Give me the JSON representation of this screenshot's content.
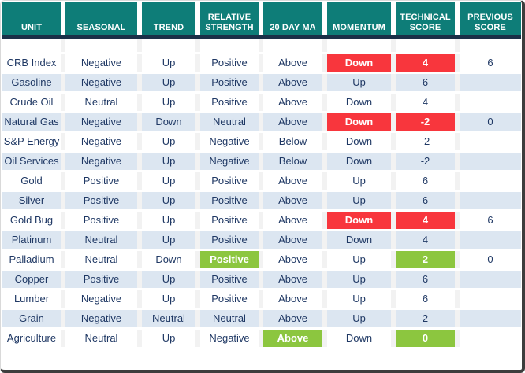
{
  "colors": {
    "header": "#0e7d78",
    "divider": "#1a3048",
    "text": "#1f3864",
    "stripe": "#dce6f1",
    "red": "#f8363d",
    "green": "#8cc63f"
  },
  "table": {
    "columns": [
      {
        "key": "unit",
        "label": "UNIT"
      },
      {
        "key": "seasonal",
        "label": "SEASONAL"
      },
      {
        "key": "trend",
        "label": "TREND"
      },
      {
        "key": "relative_strength",
        "label": "RELATIVE STRENGTH"
      },
      {
        "key": "ma20",
        "label": "20 DAY MA"
      },
      {
        "key": "momentum",
        "label": "MOMENTUM"
      },
      {
        "key": "technical_score",
        "label": "TECHNICAL SCORE"
      },
      {
        "key": "previous_score",
        "label": "PREVIOUS SCORE"
      }
    ],
    "rows": [
      {
        "unit": "CRB Index",
        "seasonal": "Negative",
        "trend": "Up",
        "relative_strength": "Positive",
        "ma20": "Above",
        "momentum": "Down",
        "technical_score": "4",
        "previous_score": "6",
        "highlights": {
          "momentum": "red",
          "technical_score": "red"
        }
      },
      {
        "unit": "Gasoline",
        "seasonal": "Negative",
        "trend": "Up",
        "relative_strength": "Positive",
        "ma20": "Above",
        "momentum": "Up",
        "technical_score": "6",
        "previous_score": "",
        "highlights": {}
      },
      {
        "unit": "Crude Oil",
        "seasonal": "Neutral",
        "trend": "Up",
        "relative_strength": "Positive",
        "ma20": "Above",
        "momentum": "Down",
        "technical_score": "4",
        "previous_score": "",
        "highlights": {}
      },
      {
        "unit": "Natural Gas",
        "seasonal": "Negative",
        "trend": "Down",
        "relative_strength": "Neutral",
        "ma20": "Above",
        "momentum": "Down",
        "technical_score": "-2",
        "previous_score": "0",
        "highlights": {
          "momentum": "red",
          "technical_score": "red"
        }
      },
      {
        "unit": "S&P Energy",
        "seasonal": "Negative",
        "trend": "Up",
        "relative_strength": "Negative",
        "ma20": "Below",
        "momentum": "Down",
        "technical_score": "-2",
        "previous_score": "",
        "highlights": {}
      },
      {
        "unit": "Oil Services",
        "seasonal": "Negative",
        "trend": "Up",
        "relative_strength": "Negative",
        "ma20": "Below",
        "momentum": "Down",
        "technical_score": "-2",
        "previous_score": "",
        "highlights": {}
      },
      {
        "unit": "Gold",
        "seasonal": "Positive",
        "trend": "Up",
        "relative_strength": "Positive",
        "ma20": "Above",
        "momentum": "Up",
        "technical_score": "6",
        "previous_score": "",
        "highlights": {}
      },
      {
        "unit": "Silver",
        "seasonal": "Positive",
        "trend": "Up",
        "relative_strength": "Positive",
        "ma20": "Above",
        "momentum": "Up",
        "technical_score": "6",
        "previous_score": "",
        "highlights": {}
      },
      {
        "unit": "Gold Bug",
        "seasonal": "Positive",
        "trend": "Up",
        "relative_strength": "Positive",
        "ma20": "Above",
        "momentum": "Down",
        "technical_score": "4",
        "previous_score": "6",
        "highlights": {
          "momentum": "red",
          "technical_score": "red"
        }
      },
      {
        "unit": "Platinum",
        "seasonal": "Neutral",
        "trend": "Up",
        "relative_strength": "Positive",
        "ma20": "Above",
        "momentum": "Down",
        "technical_score": "4",
        "previous_score": "",
        "highlights": {}
      },
      {
        "unit": "Palladium",
        "seasonal": "Neutral",
        "trend": "Down",
        "relative_strength": "Positive",
        "ma20": "Above",
        "momentum": "Up",
        "technical_score": "2",
        "previous_score": "0",
        "highlights": {
          "relative_strength": "green",
          "technical_score": "green"
        }
      },
      {
        "unit": "Copper",
        "seasonal": "Positive",
        "trend": "Up",
        "relative_strength": "Positive",
        "ma20": "Above",
        "momentum": "Up",
        "technical_score": "6",
        "previous_score": "",
        "highlights": {}
      },
      {
        "unit": "Lumber",
        "seasonal": "Negative",
        "trend": "Up",
        "relative_strength": "Positive",
        "ma20": "Above",
        "momentum": "Up",
        "technical_score": "6",
        "previous_score": "",
        "highlights": {}
      },
      {
        "unit": "Grain",
        "seasonal": "Negative",
        "trend": "Neutral",
        "relative_strength": "Neutral",
        "ma20": "Above",
        "momentum": "Up",
        "technical_score": "2",
        "previous_score": "",
        "highlights": {}
      },
      {
        "unit": "Agriculture",
        "seasonal": "Neutral",
        "trend": "Up",
        "relative_strength": "Negative",
        "ma20": "Above",
        "momentum": "Down",
        "technical_score": "0",
        "previous_score": "",
        "highlights": {
          "ma20": "green",
          "technical_score": "green"
        }
      }
    ]
  }
}
